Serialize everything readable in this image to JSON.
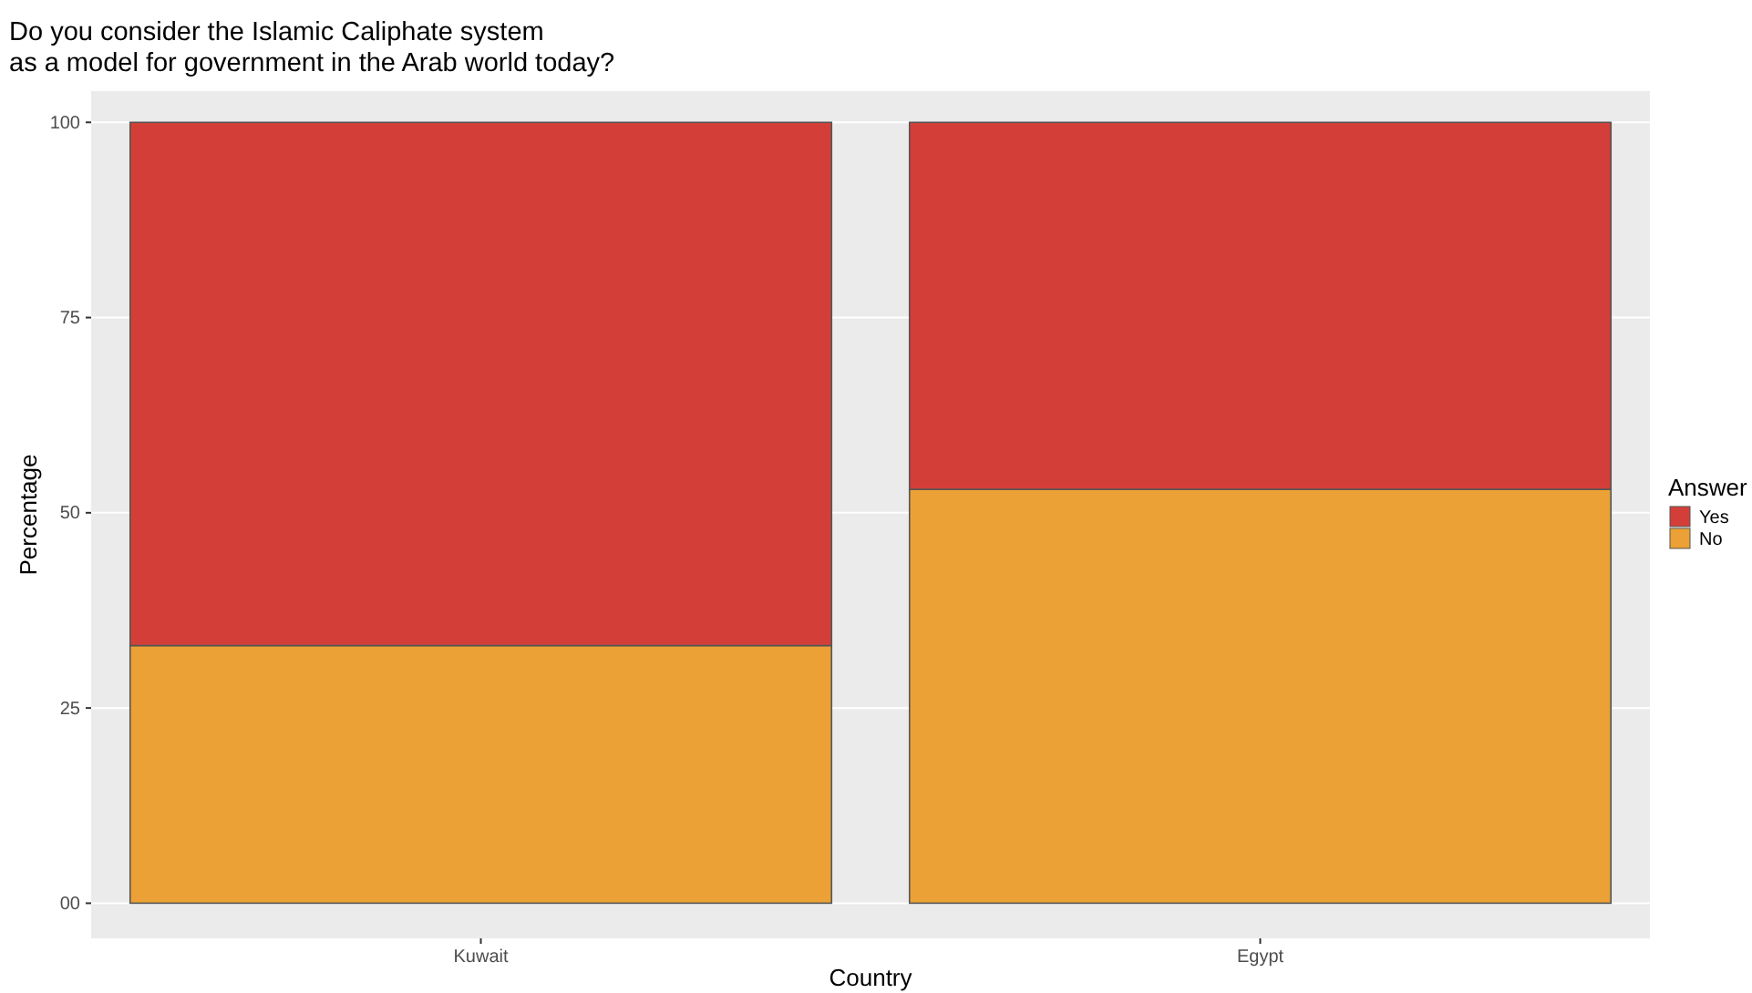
{
  "chart_data": {
    "type": "bar",
    "title": "Do you consider the Islamic Caliphate system\nas a model for government in the Arab world today?",
    "xlabel": "Country",
    "ylabel": "Percentage",
    "legend_title": "Answer",
    "categories": [
      "Kuwait",
      "Egypt"
    ],
    "stacked": true,
    "series": [
      {
        "name": "No",
        "color": "#eba135",
        "values": [
          33,
          53
        ]
      },
      {
        "name": "Yes",
        "color": "#d33f38",
        "values": [
          67,
          47
        ]
      }
    ],
    "ylim": [
      -4.5,
      104
    ],
    "yticks": [
      {
        "value": 0,
        "label": "00"
      },
      25,
      50,
      75,
      100
    ],
    "grid": "y",
    "legend": "right"
  }
}
